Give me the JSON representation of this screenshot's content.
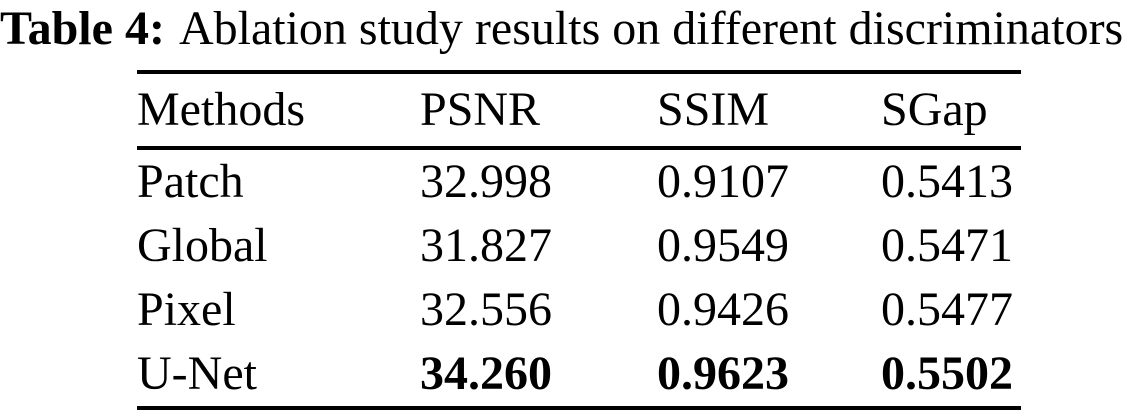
{
  "caption": {
    "label": "Table 4:",
    "text": "Ablation study results on different discriminators"
  },
  "table": {
    "columns": [
      "Methods",
      "PSNR",
      "SSIM",
      "SGap"
    ],
    "rows": [
      {
        "method": "Patch",
        "psnr": "32.998",
        "ssim": "0.9107",
        "sgap": "0.5413",
        "bold_values": false
      },
      {
        "method": "Global",
        "psnr": "31.827",
        "ssim": "0.9549",
        "sgap": "0.5471",
        "bold_values": false
      },
      {
        "method": "Pixel",
        "psnr": "32.556",
        "ssim": "0.9426",
        "sgap": "0.5477",
        "bold_values": false
      },
      {
        "method": "U-Net",
        "psnr": "34.260",
        "ssim": "0.9623",
        "sgap": "0.5502",
        "bold_values": true
      }
    ],
    "best_method": "U-Net"
  },
  "colors": {
    "background": "#ffffff",
    "text": "#000000",
    "rule": "#000000"
  }
}
